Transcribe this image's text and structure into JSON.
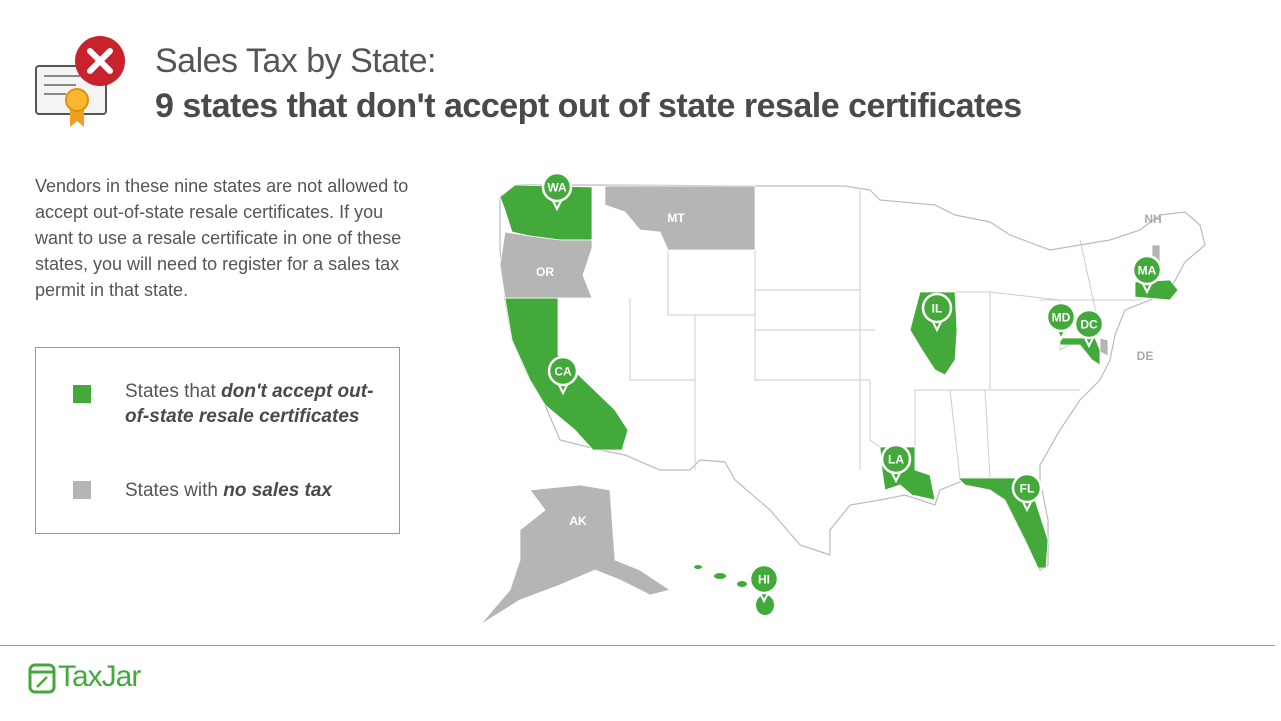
{
  "header": {
    "title": "Sales Tax by State:",
    "subtitle": "9 states that don't accept out of state resale certificates"
  },
  "description": "Vendors in these nine states are not allowed to accept out-of-state resale certificates. If you want to use a resale certificate in one of these states, you will need to register for a sales tax permit in that state.",
  "legend": [
    {
      "text": "States that ",
      "emphasis": "don't accept out-of-state resale certificates",
      "color": "#43a93a"
    },
    {
      "text": "States with ",
      "emphasis": "no sales tax",
      "color": "#b5b5b5"
    }
  ],
  "map": {
    "pins": [
      "WA",
      "CA",
      "IL",
      "LA",
      "FL",
      "MD",
      "DC",
      "MA",
      "HI"
    ],
    "no_tax_labels": [
      "MT",
      "OR",
      "AK",
      "NH",
      "DE"
    ]
  },
  "logo": "TaxJar"
}
